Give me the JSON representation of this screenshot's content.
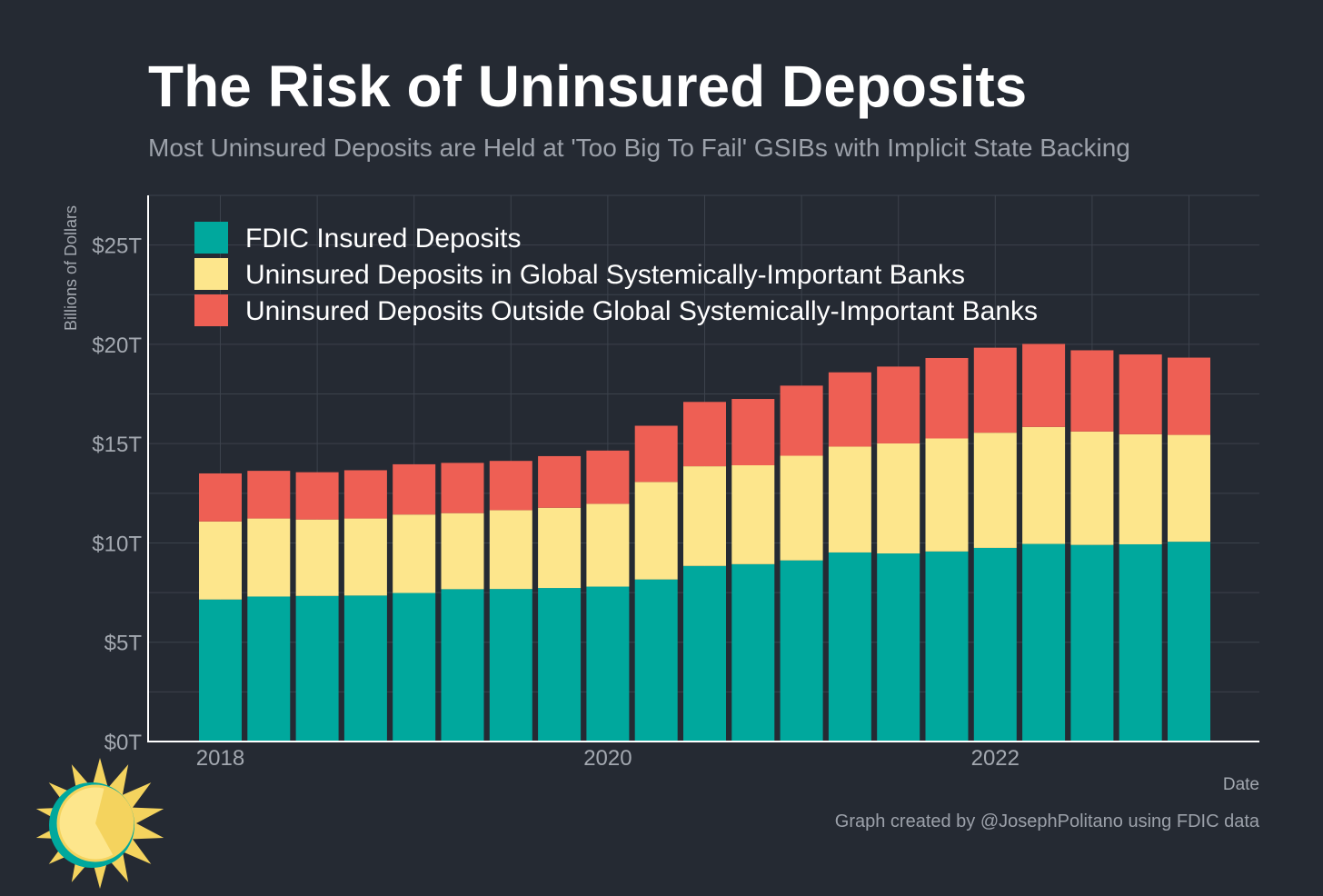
{
  "header": {
    "title": "The Risk of Uninsured Deposits",
    "subtitle": "Most Uninsured Deposits are Held at 'Too Big To Fail' GSIBs with Implicit State Backing"
  },
  "footer": {
    "credit": "Graph created by @JosephPolitano using FDIC data",
    "logo_icon": "sun-logo-icon"
  },
  "colors": {
    "background": "#252a33",
    "insured": "#00a89d",
    "gsib": "#fde68c",
    "non_gsib": "#ee5f54",
    "grid": "#3c424c",
    "axis_text": "#a3a8b0"
  },
  "chart_data": {
    "type": "bar",
    "stacked": true,
    "xlabel": "Date",
    "ylabel": "Billions of Dollars",
    "ylim": [
      0,
      27500
    ],
    "y_ticks": [
      0,
      5000,
      10000,
      15000,
      20000,
      25000
    ],
    "y_tick_labels": [
      "$0T",
      "$5T",
      "$10T",
      "$15T",
      "$20T",
      "$25T"
    ],
    "x_tick_labels": [
      "2018",
      "2020",
      "2022"
    ],
    "grid": true,
    "legend_position": "top-left",
    "categories": [
      "2018Q1",
      "2018Q2",
      "2018Q3",
      "2018Q4",
      "2019Q1",
      "2019Q2",
      "2019Q3",
      "2019Q4",
      "2020Q1",
      "2020Q2",
      "2020Q3",
      "2020Q4",
      "2021Q1",
      "2021Q2",
      "2021Q3",
      "2021Q4",
      "2022Q1",
      "2022Q2",
      "2022Q3",
      "2022Q4",
      "2023Q1"
    ],
    "series": [
      {
        "name": "FDIC Insured Deposits",
        "values": [
          7150,
          7300,
          7330,
          7350,
          7480,
          7670,
          7680,
          7730,
          7800,
          8160,
          8840,
          8930,
          9120,
          9520,
          9470,
          9570,
          9750,
          9950,
          9900,
          9930,
          10060
        ]
      },
      {
        "name": "Uninsured Deposits in Global Systemically-Important Banks",
        "values": [
          3930,
          3930,
          3850,
          3880,
          3950,
          3830,
          3970,
          4040,
          4170,
          4910,
          5020,
          4980,
          5270,
          5330,
          5540,
          5690,
          5800,
          5890,
          5710,
          5540,
          5380
        ]
      },
      {
        "name": "Uninsured Deposits Outside Global Systemically-Important Banks",
        "values": [
          2420,
          2400,
          2380,
          2430,
          2530,
          2530,
          2480,
          2600,
          2680,
          2830,
          3240,
          3340,
          3530,
          3740,
          3870,
          4050,
          4280,
          4180,
          4090,
          4020,
          3890
        ]
      }
    ]
  }
}
